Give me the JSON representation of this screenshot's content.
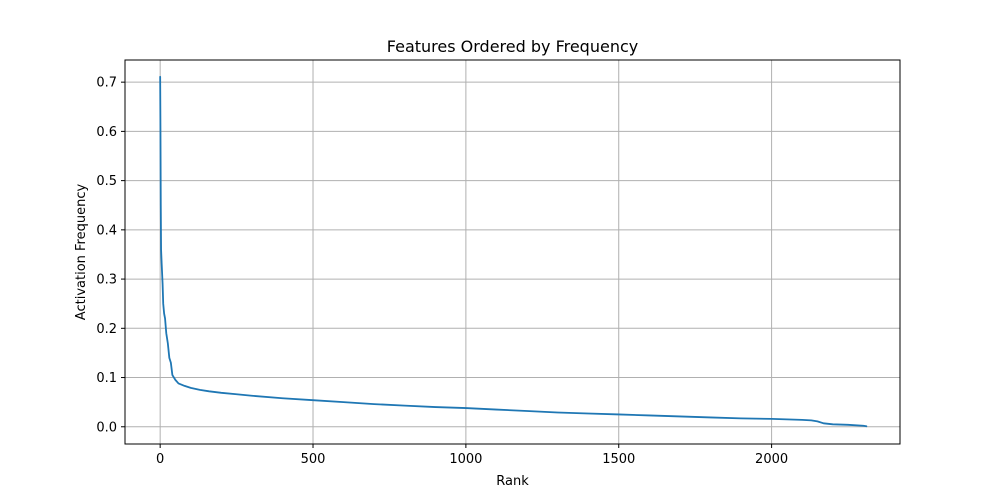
{
  "chart_data": {
    "type": "line",
    "title": "Features Ordered by Frequency",
    "xlabel": "Rank",
    "ylabel": "Activation Frequency",
    "xlim": [
      -115,
      2420
    ],
    "ylim": [
      -0.035,
      0.745
    ],
    "xticks": [
      0,
      500,
      1000,
      1500,
      2000
    ],
    "xtick_labels": [
      "0",
      "500",
      "1000",
      "1500",
      "2000"
    ],
    "yticks": [
      0.0,
      0.1,
      0.2,
      0.3,
      0.4,
      0.5,
      0.6,
      0.7
    ],
    "ytick_labels": [
      "0.0",
      "0.1",
      "0.2",
      "0.3",
      "0.4",
      "0.5",
      "0.6",
      "0.7"
    ],
    "grid": true,
    "legend": "none",
    "series": [
      {
        "color": "#1f77b4",
        "x": [
          0,
          1,
          2,
          3,
          5,
          8,
          10,
          13,
          16,
          20,
          25,
          30,
          35,
          40,
          50,
          60,
          80,
          100,
          130,
          160,
          200,
          250,
          300,
          400,
          500,
          600,
          700,
          800,
          900,
          1000,
          1100,
          1200,
          1300,
          1400,
          1500,
          1600,
          1700,
          1800,
          1900,
          2000,
          2050,
          2100,
          2130,
          2150,
          2170,
          2200,
          2250,
          2300,
          2310
        ],
        "y": [
          0.711,
          0.6,
          0.45,
          0.36,
          0.33,
          0.29,
          0.25,
          0.23,
          0.22,
          0.19,
          0.17,
          0.14,
          0.13,
          0.105,
          0.095,
          0.088,
          0.083,
          0.079,
          0.075,
          0.072,
          0.069,
          0.066,
          0.063,
          0.058,
          0.054,
          0.05,
          0.046,
          0.043,
          0.04,
          0.038,
          0.035,
          0.032,
          0.029,
          0.027,
          0.025,
          0.023,
          0.021,
          0.019,
          0.017,
          0.016,
          0.015,
          0.014,
          0.013,
          0.011,
          0.007,
          0.005,
          0.004,
          0.002,
          0.001
        ]
      }
    ]
  }
}
